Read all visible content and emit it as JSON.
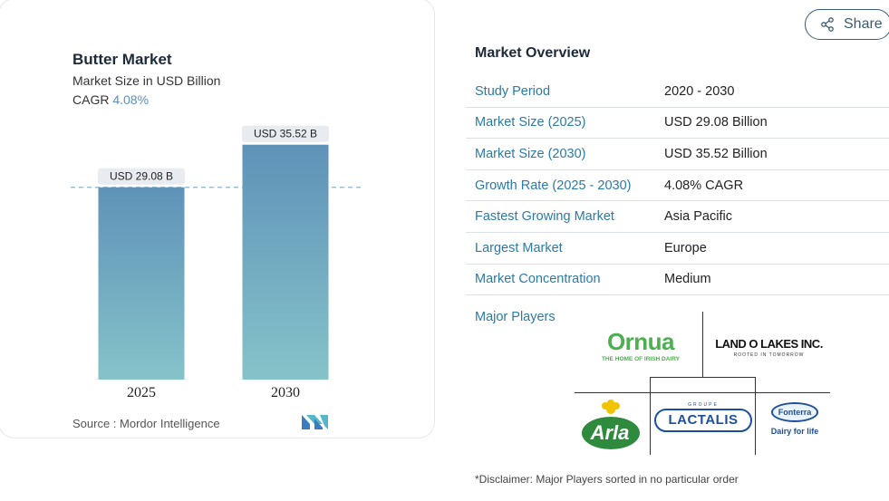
{
  "chart": {
    "title": "Butter Market",
    "subtitle": "Market Size in USD Billion",
    "cagr_label": "CAGR",
    "cagr_value": "4.08%",
    "source_label": "Source :",
    "source_value": "Mordor Intelligence"
  },
  "chart_data": {
    "type": "bar",
    "categories": [
      "2025",
      "2030"
    ],
    "values": [
      29.08,
      35.52
    ],
    "data_labels": [
      "USD 29.08 B",
      "USD 35.52 B"
    ],
    "title": "Butter Market",
    "ylabel": "",
    "xlabel": "",
    "ylim": [
      0,
      40
    ],
    "colors": {
      "bar_top": "#5f92b8",
      "bar_bottom": "#85c3c9",
      "label_bg": "#e8ecf0",
      "reference_line": "#9fbfd6"
    },
    "reference_line_at": 29.08
  },
  "share": {
    "label": "Share",
    "icon": "share-icon"
  },
  "overview": {
    "title": "Market Overview",
    "rows": [
      {
        "label": "Study Period",
        "value": "2020 - 2030"
      },
      {
        "label": "Market Size (2025)",
        "value": "USD 29.08 Billion"
      },
      {
        "label": "Market Size (2030)",
        "value": "USD 35.52 Billion"
      },
      {
        "label": "Growth Rate (2025 - 2030)",
        "value": "4.08% CAGR"
      },
      {
        "label": "Fastest Growing Market",
        "value": "Asia Pacific"
      },
      {
        "label": "Largest Market",
        "value": "Europe"
      },
      {
        "label": "Market Concentration",
        "value": "Medium"
      }
    ]
  },
  "players": {
    "title": "Major Players",
    "logos": [
      {
        "name": "Ornua",
        "tagline": "THE HOME OF IRISH DAIRY"
      },
      {
        "name": "LAND O LAKES INC.",
        "tagline": "ROOTED IN TOMORROW"
      },
      {
        "name": "Arla"
      },
      {
        "name": "LACTALIS",
        "tagline": "GROUPE"
      },
      {
        "name": "Fonterra",
        "tagline": "Dairy for life"
      }
    ]
  },
  "disclaimer": "*Disclaimer: Major Players sorted in no particular order"
}
